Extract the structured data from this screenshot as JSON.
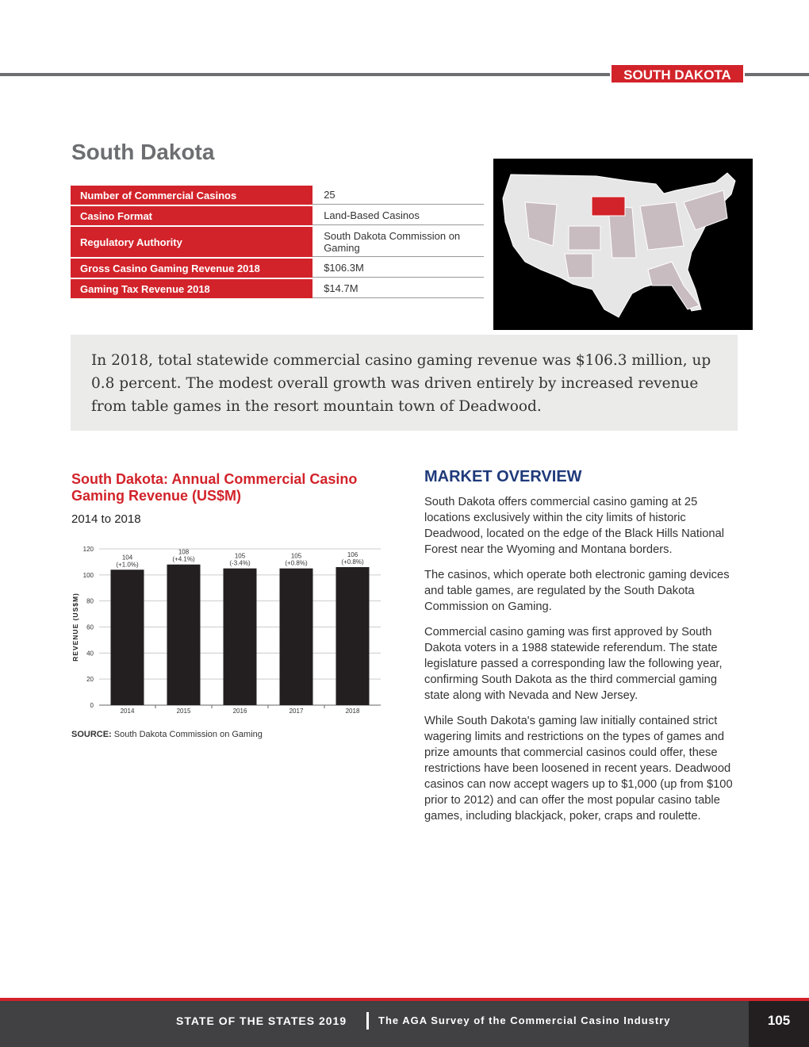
{
  "header": {
    "state_tag": "SOUTH DAKOTA"
  },
  "title": "South Dakota",
  "facts": [
    {
      "label": "Number of Commercial Casinos",
      "value": "25"
    },
    {
      "label": "Casino Format",
      "value": "Land-Based Casinos"
    },
    {
      "label": "Regulatory Authority",
      "value": "South Dakota Commission on Gaming"
    },
    {
      "label": "Gross Casino Gaming Revenue 2018",
      "value": "$106.3M"
    },
    {
      "label": "Gaming Tax Revenue 2018",
      "value": "$14.7M"
    }
  ],
  "map": {
    "highlight_color": "#d2232a",
    "background": "#000000"
  },
  "summary": "In 2018, total statewide commercial casino gaming revenue was $106.3 million, up 0.8 percent. The modest overall growth was driven entirely by increased revenue from table games in the resort mountain town of Deadwood.",
  "chart_data": {
    "type": "bar",
    "title": "South Dakota: Annual Commercial Casino Gaming Revenue (US$M)",
    "subtitle": "2014 to 2018",
    "categories": [
      "2014",
      "2015",
      "2016",
      "2017",
      "2018"
    ],
    "values": [
      104,
      108,
      105,
      105,
      106
    ],
    "data_labels": [
      [
        "104",
        "(+1.0%)"
      ],
      [
        "108",
        "(+4.1%)"
      ],
      [
        "105",
        "(-3.4%)"
      ],
      [
        "105",
        "(+0.8%)"
      ],
      [
        "106",
        "(+0.8%)"
      ]
    ],
    "ylabel": "REVENUE (US$M)",
    "ylim": [
      0,
      120
    ],
    "yticks": [
      "0",
      "20",
      "40",
      "60",
      "80",
      "100",
      "120"
    ],
    "grid": true,
    "bar_color": "#231f20",
    "source_label": "SOURCE:",
    "source": "South Dakota Commission on Gaming"
  },
  "market": {
    "heading": "MARKET OVERVIEW",
    "paragraphs": [
      "South Dakota offers commercial casino gaming at 25 locations exclusively within the city limits of historic Deadwood, located on the edge of the Black Hills National Forest near the Wyoming and Montana borders.",
      "The casinos, which operate both electronic gaming devices and table games, are regulated by the South Dakota Commission on Gaming.",
      "Commercial casino gaming was first approved by South Dakota voters in a 1988 statewide referendum. The state legislature passed a corresponding law the following year, confirming South Dakota as the third commercial gaming state along with Nevada and New Jersey.",
      "While South Dakota's gaming law initially contained strict wagering limits and restrictions on the types of games and prize amounts that commercial casinos could offer, these restrictions have been loosened in recent years. Deadwood casinos can now accept wagers up to $1,000 (up from $100 prior to 2012) and can offer the most popular casino table games, including blackjack, poker, craps and roulette."
    ]
  },
  "footer": {
    "report": "STATE OF THE STATES 2019",
    "subtitle": "The AGA Survey of the Commercial Casino Industry",
    "page": "105"
  }
}
